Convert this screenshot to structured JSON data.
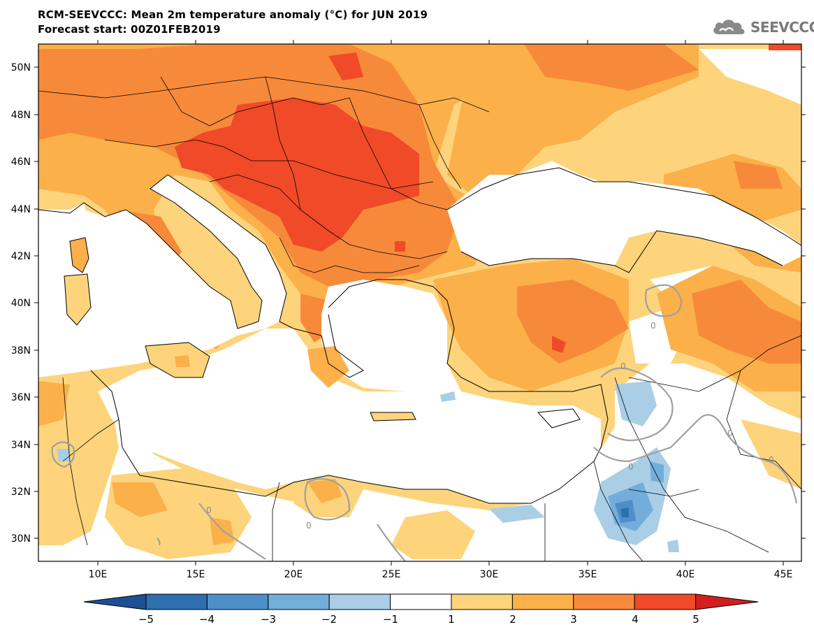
{
  "title_line1": "RCM-SEEVCCC: Mean 2m temperature anomaly (°C) for JUN 2019",
  "title_line2": "Forecast start: 00Z01FEB2019",
  "logo_text": "SEEVCCC",
  "lat_labels": [
    "50N",
    "48N",
    "46N",
    "44N",
    "42N",
    "40N",
    "38N",
    "36N",
    "34N",
    "32N",
    "30N"
  ],
  "lon_labels": [
    "10E",
    "15E",
    "20E",
    "25E",
    "30E",
    "35E",
    "40E",
    "45E"
  ],
  "colorbar": {
    "labels": [
      "−5",
      "−4",
      "−3",
      "−2",
      "−1",
      "1",
      "2",
      "3",
      "4",
      "5"
    ],
    "colors": [
      "#1e4f95",
      "#2e6fb0",
      "#4e8fca",
      "#73aedb",
      "#a9cee6",
      "#ffffff",
      "#fdd47c",
      "#fbb04a",
      "#f78a3a",
      "#f04a28",
      "#d41e1e"
    ]
  },
  "contour_labels": [
    "0",
    "0",
    "0",
    "0",
    "0",
    "0",
    "0"
  ]
}
